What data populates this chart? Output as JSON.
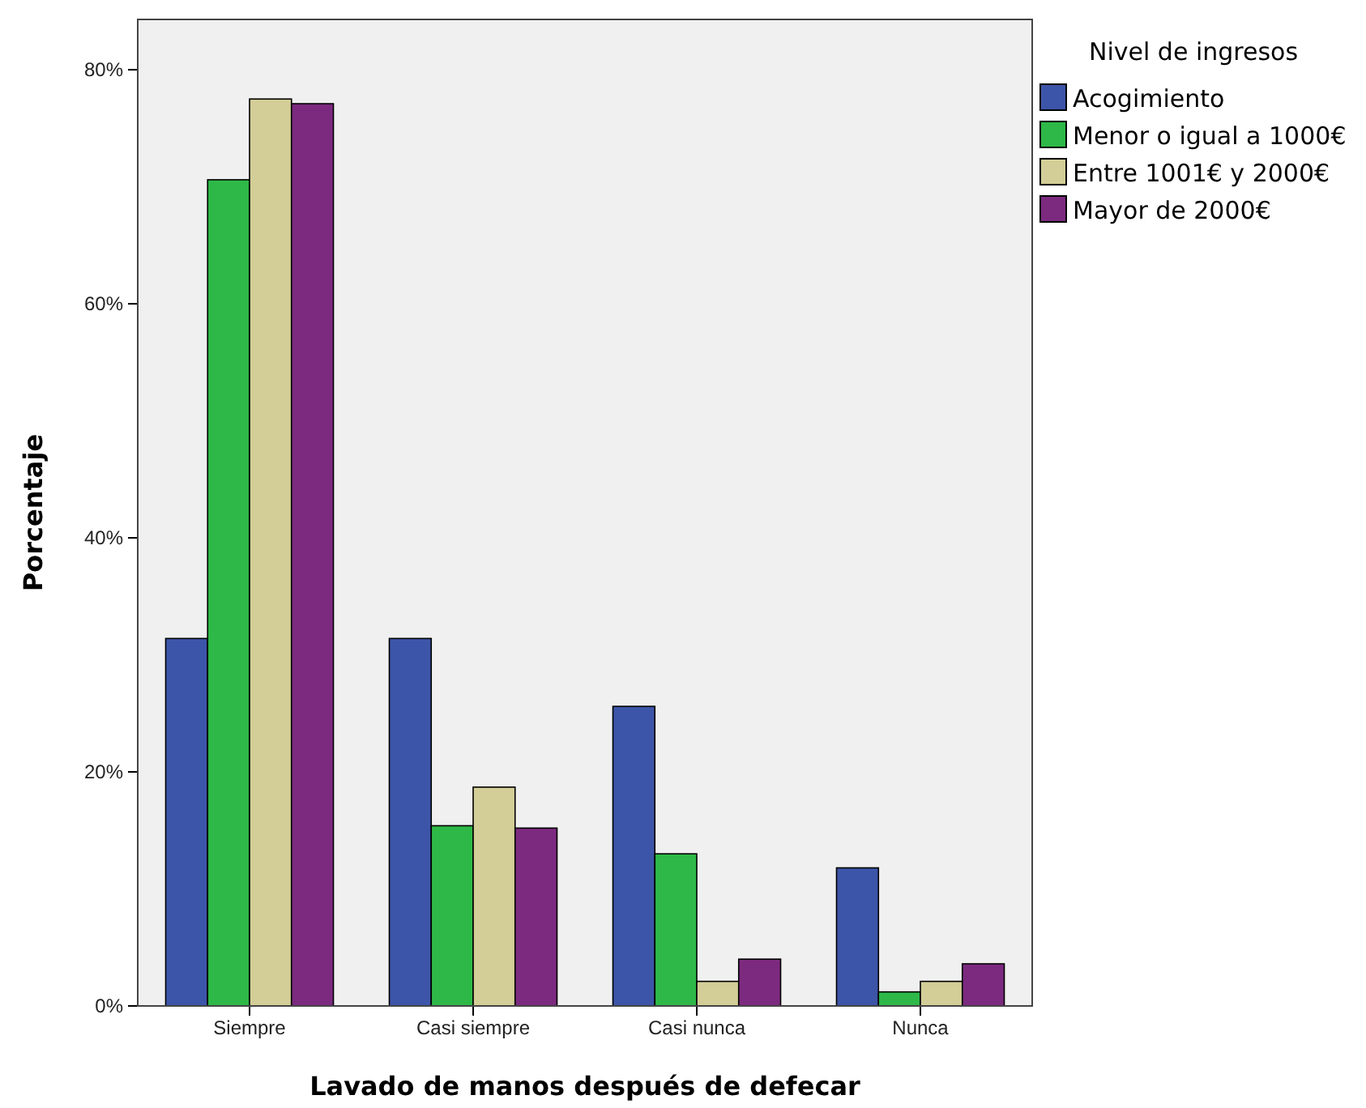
{
  "chart_data": {
    "type": "bar",
    "xlabel": "Lavado de manos después de defecar",
    "ylabel": "Porcentaje",
    "legend_title": "Nivel de ingresos",
    "categories": [
      "Siempre",
      "Casi siempre",
      "Casi nunca",
      "Nunca"
    ],
    "series": [
      {
        "name": "Acogimiento",
        "color": "#3d55a8",
        "values": [
          31.4,
          31.4,
          25.6,
          11.8
        ]
      },
      {
        "name": "Menor o igual a 1000€",
        "color": "#2eb847",
        "values": [
          70.6,
          15.4,
          13.0,
          1.2
        ]
      },
      {
        "name": "Entre 1001€ y 2000€",
        "color": "#d3ce97",
        "values": [
          77.5,
          18.7,
          2.1,
          2.1
        ]
      },
      {
        "name": "Mayor de 2000€",
        "color": "#7c2a7f",
        "values": [
          77.1,
          15.2,
          4.0,
          3.6
        ]
      }
    ],
    "ylim": [
      0,
      84.3
    ],
    "yticks": [
      {
        "value": 0,
        "label": "0%"
      },
      {
        "value": 20,
        "label": "20%"
      },
      {
        "value": 40,
        "label": "40%"
      },
      {
        "value": 60,
        "label": "60%"
      },
      {
        "value": 80,
        "label": "80%"
      }
    ],
    "grid": false,
    "legend": "top right"
  }
}
